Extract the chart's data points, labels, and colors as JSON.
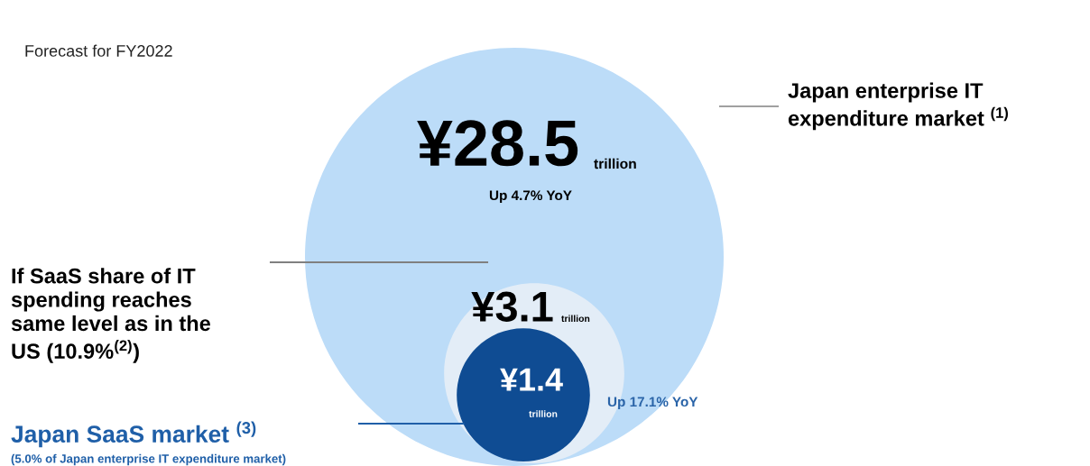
{
  "chart_data": {
    "type": "other",
    "title": "Forecast for FY2022",
    "categories": [
      "Japan enterprise IT expenditure market $^{(1)}$",
      "If SaaS share of IT\nspending reaches\nsame level as in the\nUS (10.9%$^{(2)}$)",
      "Japan SaaS market $^{(3)}$"
    ],
    "values": [
      28.5,
      3.1,
      1.4
    ],
    "value_labels": [
      "¥28.5",
      "¥3.1",
      "¥1.4"
    ],
    "colors": [
      "#bcdcf8",
      "#e3edf7",
      "#0f4c93"
    ],
    "annotations": [
      "trillion",
      "trillion",
      "trillion",
      "Up 4.7% YoY",
      "Up 17.1% YoY",
      "(5.0% of Japan enterprise IT expenditure market)"
    ]
  }
}
